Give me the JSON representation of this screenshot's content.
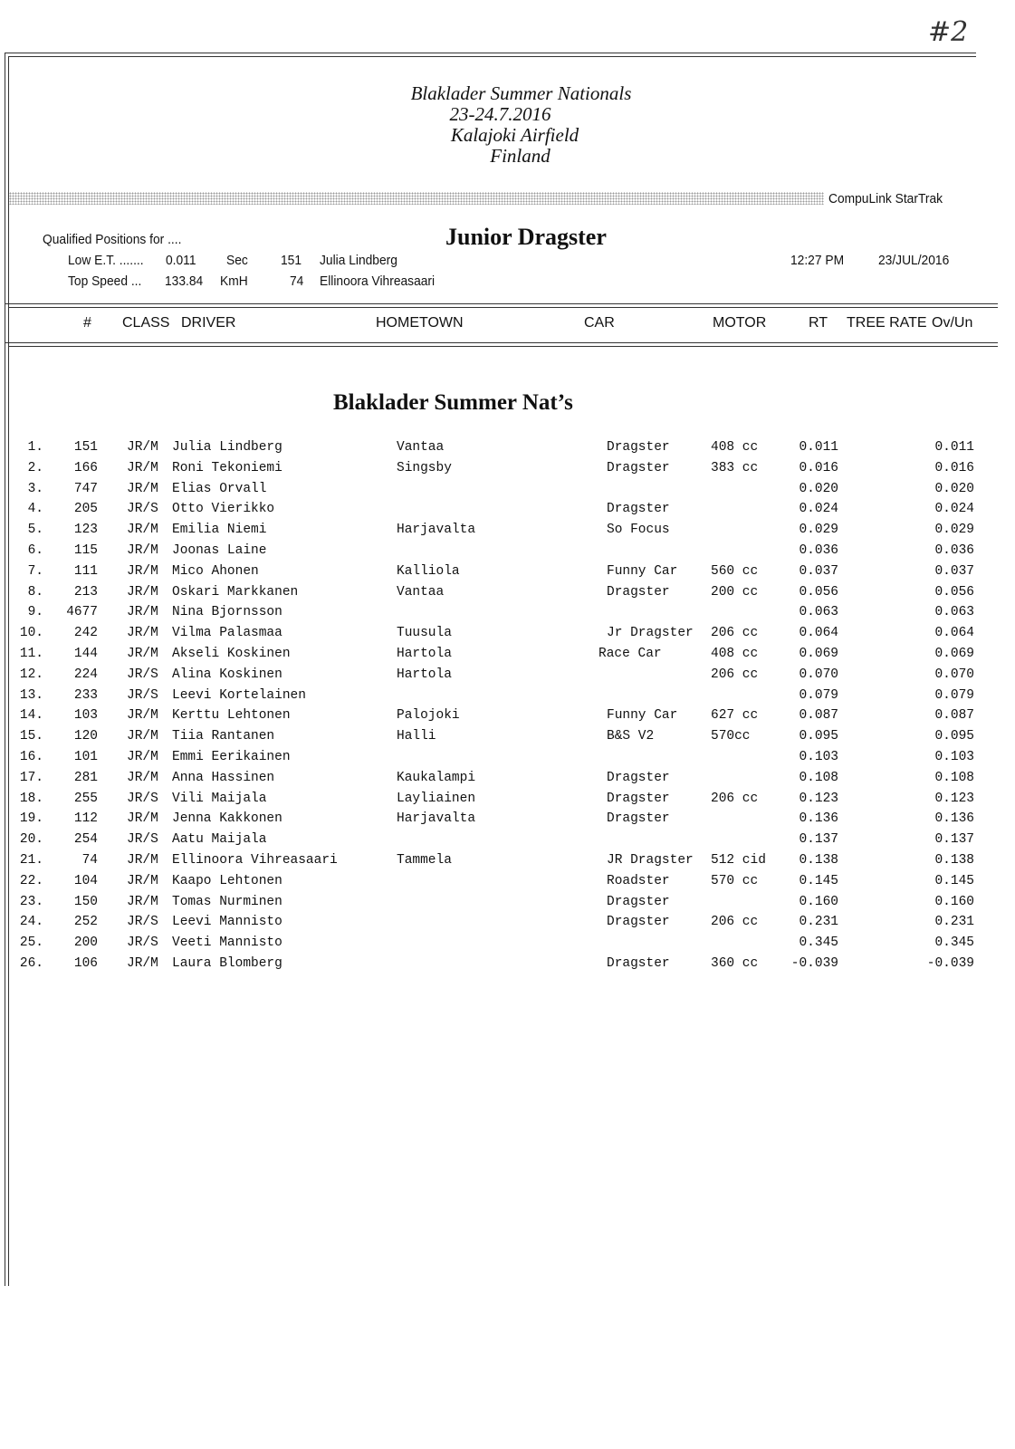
{
  "handwritten_note": "#2",
  "event": {
    "title": "Blaklader Summer Nationals",
    "dates": "23-24.7.2016",
    "venue": "Kalajoki Airfield",
    "country": "Finland"
  },
  "system_name": "CompuLink  StarTrak",
  "qualified_label": "Qualified Positions for ....",
  "class_title": "Junior Dragster",
  "low_et": {
    "label": "Low E.T. .......",
    "value": "0.011",
    "unit": "Sec",
    "car": "151",
    "driver": "Julia Lindberg"
  },
  "top_speed": {
    "label": "Top Speed ...",
    "value": "133.84",
    "unit": "KmH",
    "car": "74",
    "driver": "Ellinoora Vihreasaari"
  },
  "time": "12:27 PM",
  "date": "23/JUL/2016",
  "columns": {
    "num": "#",
    "class": "CLASS",
    "driver": "DRIVER",
    "hometown": "HOMETOWN",
    "car": "CAR",
    "motor": "MOTOR",
    "rt": "RT",
    "tree_rate": "TREE RATE",
    "ovun": "Ov/Un"
  },
  "section_title": "Blaklader Summer Nat’s",
  "rows": [
    {
      "pos": "1.",
      "num": "151",
      "class": "JR/M",
      "driver": "Julia Lindberg",
      "hometown": "Vantaa",
      "car": "Dragster",
      "motor": "408 cc",
      "rt": "0.011",
      "ovun": "0.011"
    },
    {
      "pos": "2.",
      "num": "166",
      "class": "JR/M",
      "driver": "Roni Tekoniemi",
      "hometown": "Singsby",
      "car": "Dragster",
      "motor": "383 cc",
      "rt": "0.016",
      "ovun": "0.016"
    },
    {
      "pos": "3.",
      "num": "747",
      "class": "JR/M",
      "driver": "Elias Orvall",
      "hometown": "",
      "car": "",
      "motor": "",
      "rt": "0.020",
      "ovun": "0.020"
    },
    {
      "pos": "4.",
      "num": "205",
      "class": "JR/S",
      "driver": "Otto Vierikko",
      "hometown": "",
      "car": "Dragster",
      "motor": "",
      "rt": "0.024",
      "ovun": "0.024"
    },
    {
      "pos": "5.",
      "num": "123",
      "class": "JR/M",
      "driver": "Emilia Niemi",
      "hometown": "Harjavalta",
      "car": "So Focus",
      "motor": "",
      "rt": "0.029",
      "ovun": "0.029"
    },
    {
      "pos": "6.",
      "num": "115",
      "class": "JR/M",
      "driver": "Joonas Laine",
      "hometown": "",
      "car": "",
      "motor": "",
      "rt": "0.036",
      "ovun": "0.036"
    },
    {
      "pos": "7.",
      "num": "111",
      "class": "JR/M",
      "driver": "Mico Ahonen",
      "hometown": "Kalliola",
      "car": "Funny Car",
      "motor": "560 cc",
      "rt": "0.037",
      "ovun": "0.037"
    },
    {
      "pos": "8.",
      "num": "213",
      "class": "JR/M",
      "driver": "Oskari Markkanen",
      "hometown": "Vantaa",
      "car": "Dragster",
      "motor": "200 cc",
      "rt": "0.056",
      "ovun": "0.056"
    },
    {
      "pos": "9.",
      "num": "4677",
      "class": "JR/M",
      "driver": "Nina Bjornsson",
      "hometown": "",
      "car": "",
      "motor": "",
      "rt": "0.063",
      "ovun": "0.063"
    },
    {
      "pos": "10.",
      "num": "242",
      "class": "JR/M",
      "driver": "Vilma Palasmaa",
      "hometown": "Tuusula",
      "car": "Jr Dragster",
      "motor": "206 cc",
      "rt": "0.064",
      "ovun": "0.064"
    },
    {
      "pos": "11.",
      "num": "144",
      "class": "JR/M",
      "driver": "Akseli Koskinen",
      "hometown": "Hartola",
      "car": "Race Car",
      "motor": "408 cc",
      "rt": "0.069",
      "ovun": "0.069"
    },
    {
      "pos": "12.",
      "num": "224",
      "class": "JR/S",
      "driver": "Alina Koskinen",
      "hometown": "Hartola",
      "car": "",
      "motor": "206 cc",
      "rt": "0.070",
      "ovun": "0.070"
    },
    {
      "pos": "13.",
      "num": "233",
      "class": "JR/S",
      "driver": "Leevi Kortelainen",
      "hometown": "",
      "car": "",
      "motor": "",
      "rt": "0.079",
      "ovun": "0.079"
    },
    {
      "pos": "14.",
      "num": "103",
      "class": "JR/M",
      "driver": "Kerttu Lehtonen",
      "hometown": "Palojoki",
      "car": "Funny Car",
      "motor": "627 cc",
      "rt": "0.087",
      "ovun": "0.087"
    },
    {
      "pos": "15.",
      "num": "120",
      "class": "JR/M",
      "driver": "Tiia Rantanen",
      "hometown": "Halli",
      "car": "B&S V2",
      "motor": "570cc",
      "rt": "0.095",
      "ovun": "0.095"
    },
    {
      "pos": "16.",
      "num": "101",
      "class": "JR/M",
      "driver": "Emmi Eerikainen",
      "hometown": "",
      "car": "",
      "motor": "",
      "rt": "0.103",
      "ovun": "0.103"
    },
    {
      "pos": "17.",
      "num": "281",
      "class": "JR/M",
      "driver": "Anna Hassinen",
      "hometown": "Kaukalampi",
      "car": "Dragster",
      "motor": "",
      "rt": "0.108",
      "ovun": "0.108"
    },
    {
      "pos": "18.",
      "num": "255",
      "class": "JR/S",
      "driver": "Vili Maijala",
      "hometown": "Layliainen",
      "car": "Dragster",
      "motor": "206 cc",
      "rt": "0.123",
      "ovun": "0.123"
    },
    {
      "pos": "19.",
      "num": "112",
      "class": "JR/M",
      "driver": "Jenna Kakkonen",
      "hometown": "Harjavalta",
      "car": "Dragster",
      "motor": "",
      "rt": "0.136",
      "ovun": "0.136"
    },
    {
      "pos": "20.",
      "num": "254",
      "class": "JR/S",
      "driver": "Aatu Maijala",
      "hometown": "",
      "car": "",
      "motor": "",
      "rt": "0.137",
      "ovun": "0.137"
    },
    {
      "pos": "21.",
      "num": "74",
      "class": "JR/M",
      "driver": "Ellinoora Vihreasaari",
      "hometown": "Tammela",
      "car": "JR Dragster",
      "motor": "512 cid",
      "rt": "0.138",
      "ovun": "0.138"
    },
    {
      "pos": "22.",
      "num": "104",
      "class": "JR/M",
      "driver": "Kaapo Lehtonen",
      "hometown": "",
      "car": "Roadster",
      "motor": "570 cc",
      "rt": "0.145",
      "ovun": "0.145"
    },
    {
      "pos": "23.",
      "num": "150",
      "class": "JR/M",
      "driver": "Tomas Nurminen",
      "hometown": "",
      "car": "Dragster",
      "motor": "",
      "rt": "0.160",
      "ovun": "0.160"
    },
    {
      "pos": "24.",
      "num": "252",
      "class": "JR/S",
      "driver": "Leevi Mannisto",
      "hometown": "",
      "car": "Dragster",
      "motor": "206 cc",
      "rt": "0.231",
      "ovun": "0.231"
    },
    {
      "pos": "25.",
      "num": "200",
      "class": "JR/S",
      "driver": "Veeti Mannisto",
      "hometown": "",
      "car": "",
      "motor": "",
      "rt": "0.345",
      "ovun": "0.345"
    },
    {
      "pos": "26.",
      "num": "106",
      "class": "JR/M",
      "driver": "Laura Blomberg",
      "hometown": "",
      "car": "Dragster",
      "motor": "360 cc",
      "rt": "-0.039",
      "ovun": "-0.039"
    }
  ]
}
